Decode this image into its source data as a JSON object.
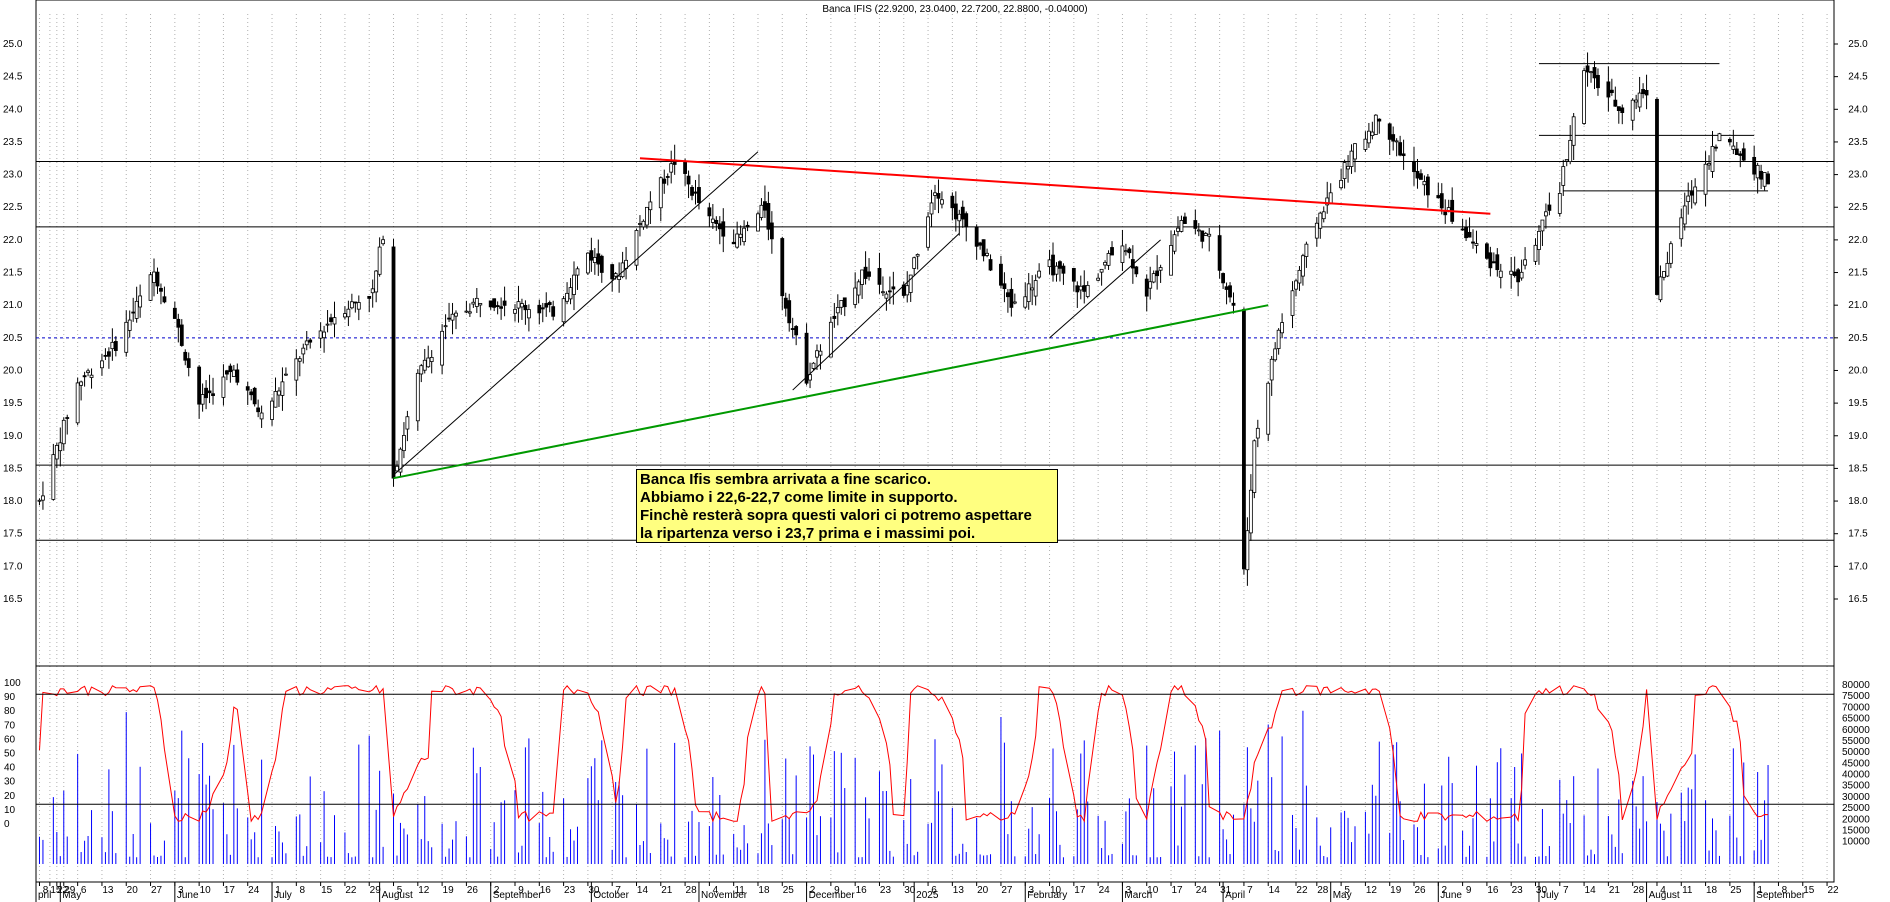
{
  "title": "Banca IFIS (22.9200, 23.0400, 22.7200, 22.8800, -0.04000)",
  "annotation": [
    "Banca Ifis sembra arrivata a fine scarico.",
    "Abbiamo i 22,6-22,7 come limite in supporto.",
    "Finchè resterà sopra questi valori ci potremo aspettare",
    "la ripartenza verso  i 23,7 prima e i massimi poi."
  ],
  "chart_data": [
    {
      "type": "candlestick",
      "title": "Banca IFIS (22.9200, 23.0400, 22.7200, 22.8800, -0.04000)",
      "ylim": [
        16.0,
        25.3
      ],
      "y_ticks": [
        16.5,
        17.0,
        17.5,
        18.0,
        18.5,
        19.0,
        19.5,
        20.0,
        20.5,
        21.0,
        21.5,
        22.0,
        22.5,
        23.0,
        23.5,
        24.0,
        24.5,
        25.0
      ],
      "horizontal_levels": [
        23.2,
        22.2,
        18.55,
        17.4
      ],
      "dashed_level": 20.5,
      "range_levels": [
        {
          "value": 24.7,
          "from": "2025-07-01",
          "to": "2025-08-22"
        },
        {
          "value": 23.6,
          "from": "2025-07-01",
          "to": "2025-09-01"
        },
        {
          "value": 22.75,
          "from": "2025-07-08",
          "to": "2025-09-05"
        }
      ],
      "trendlines": [
        {
          "color": "#ff0000",
          "points": [
            [
              "2024-10-15",
              23.25
            ],
            [
              "2025-06-17",
              22.4
            ]
          ]
        },
        {
          "color": "#009900",
          "points": [
            [
              "2024-08-05",
              18.35
            ],
            [
              "2025-04-14",
              21.0
            ]
          ]
        },
        {
          "color": "#000000",
          "points": [
            [
              "2024-08-05",
              18.4
            ],
            [
              "2024-11-18",
              23.35
            ]
          ]
        },
        {
          "color": "#000000",
          "points": [
            [
              "2024-11-28",
              19.7
            ],
            [
              "2025-01-15",
              22.1
            ]
          ]
        },
        {
          "color": "#000000",
          "points": [
            [
              "2025-02-10",
              20.5
            ],
            [
              "2025-03-14",
              22.0
            ]
          ]
        }
      ],
      "price_path": [
        [
          "2024-04-25",
          18.0
        ],
        [
          "2024-05-06",
          19.8
        ],
        [
          "2024-05-17",
          20.4
        ],
        [
          "2024-05-28",
          21.5
        ],
        [
          "2024-06-03",
          20.8
        ],
        [
          "2024-06-10",
          19.5
        ],
        [
          "2024-06-20",
          20.0
        ],
        [
          "2024-06-28",
          19.3
        ],
        [
          "2024-07-10",
          20.3
        ],
        [
          "2024-07-20",
          20.9
        ],
        [
          "2024-07-30",
          21.2
        ],
        [
          "2024-08-02",
          22.1
        ],
        [
          "2024-08-05",
          18.4
        ],
        [
          "2024-08-12",
          19.9
        ],
        [
          "2024-08-20",
          20.7
        ],
        [
          "2024-08-30",
          21.1
        ],
        [
          "2024-09-10",
          21.0
        ],
        [
          "2024-09-20",
          20.9
        ],
        [
          "2024-09-30",
          21.8
        ],
        [
          "2024-10-08",
          21.4
        ],
        [
          "2024-10-18",
          22.6
        ],
        [
          "2024-10-25",
          23.2
        ],
        [
          "2024-11-04",
          22.3
        ],
        [
          "2024-11-12",
          22.0
        ],
        [
          "2024-11-20",
          22.5
        ],
        [
          "2024-11-25",
          21.2
        ],
        [
          "2024-12-02",
          19.9
        ],
        [
          "2024-12-10",
          20.8
        ],
        [
          "2024-12-18",
          21.5
        ],
        [
          "2024-12-30",
          21.1
        ],
        [
          "2025-01-08",
          22.8
        ],
        [
          "2025-01-20",
          22.0
        ],
        [
          "2025-01-30",
          21.0
        ],
        [
          "2025-02-10",
          21.6
        ],
        [
          "2025-02-20",
          21.2
        ],
        [
          "2025-03-03",
          22.0
        ],
        [
          "2025-03-10",
          21.2
        ],
        [
          "2025-03-20",
          22.3
        ],
        [
          "2025-03-28",
          22.0
        ],
        [
          "2025-04-04",
          21.0
        ],
        [
          "2025-04-07",
          16.9
        ],
        [
          "2025-04-10",
          18.9
        ],
        [
          "2025-04-17",
          20.6
        ],
        [
          "2025-04-28",
          22.3
        ],
        [
          "2025-05-08",
          23.3
        ],
        [
          "2025-05-16",
          23.9
        ],
        [
          "2025-05-26",
          23.0
        ],
        [
          "2025-06-05",
          22.4
        ],
        [
          "2025-06-16",
          21.7
        ],
        [
          "2025-06-25",
          21.4
        ],
        [
          "2025-07-07",
          22.8
        ],
        [
          "2025-07-14",
          24.6
        ],
        [
          "2025-07-25",
          24.0
        ],
        [
          "2025-08-01",
          24.3
        ],
        [
          "2025-08-04",
          21.2
        ],
        [
          "2025-08-12",
          22.5
        ],
        [
          "2025-08-22",
          23.6
        ],
        [
          "2025-09-01",
          23.1
        ],
        [
          "2025-09-05",
          22.88
        ]
      ]
    },
    {
      "type": "line",
      "name": "oscillator",
      "ylim": [
        0,
        100
      ],
      "y_ticks": [
        0,
        10,
        20,
        30,
        40,
        50,
        60,
        70,
        80,
        90,
        100
      ],
      "levels": [
        92,
        14
      ],
      "color": "#ff0000"
    },
    {
      "type": "bar",
      "name": "volume",
      "color": "#0000ff",
      "ylim": [
        0,
        80000
      ],
      "y_ticks": [
        10000,
        15000,
        20000,
        25000,
        30000,
        35000,
        40000,
        45000,
        50000,
        55000,
        60000,
        65000,
        70000,
        75000,
        80000
      ]
    }
  ],
  "x_axis": {
    "months": [
      {
        "label": "pril",
        "date": "2024-04-24"
      },
      {
        "label": "May",
        "date": "2024-05-01"
      },
      {
        "label": "June",
        "date": "2024-06-03"
      },
      {
        "label": "July",
        "date": "2024-07-01"
      },
      {
        "label": "August",
        "date": "2024-08-01"
      },
      {
        "label": "September",
        "date": "2024-09-02"
      },
      {
        "label": "October",
        "date": "2024-10-01"
      },
      {
        "label": "November",
        "date": "2024-11-01"
      },
      {
        "label": "December",
        "date": "2024-12-02"
      },
      {
        "label": "2025",
        "date": "2025-01-02"
      },
      {
        "label": "February",
        "date": "2025-02-03"
      },
      {
        "label": "March",
        "date": "2025-03-03"
      },
      {
        "label": "April",
        "date": "2025-04-01"
      },
      {
        "label": "May",
        "date": "2025-05-02"
      },
      {
        "label": "June",
        "date": "2025-06-02"
      },
      {
        "label": "July",
        "date": "2025-07-01"
      },
      {
        "label": "August",
        "date": "2025-08-01"
      },
      {
        "label": "September",
        "date": "2025-09-01"
      }
    ],
    "days": [
      {
        "label": "8",
        "date": "2024-04-25"
      },
      {
        "label": "15",
        "date": "2024-04-28"
      },
      {
        "label": "22",
        "date": "2024-04-30"
      },
      {
        "label": "29",
        "date": "2024-05-02"
      },
      {
        "label": "6",
        "date": "2024-05-06"
      },
      {
        "label": "13",
        "date": "2024-05-13"
      },
      {
        "label": "20",
        "date": "2024-05-20"
      },
      {
        "label": "27",
        "date": "2024-05-27"
      },
      {
        "label": "3",
        "date": "2024-06-03"
      },
      {
        "label": "10",
        "date": "2024-06-10"
      },
      {
        "label": "17",
        "date": "2024-06-17"
      },
      {
        "label": "24",
        "date": "2024-06-24"
      },
      {
        "label": "1",
        "date": "2024-07-01"
      },
      {
        "label": "8",
        "date": "2024-07-08"
      },
      {
        "label": "15",
        "date": "2024-07-15"
      },
      {
        "label": "22",
        "date": "2024-07-22"
      },
      {
        "label": "29",
        "date": "2024-07-29"
      },
      {
        "label": "5",
        "date": "2024-08-05"
      },
      {
        "label": "12",
        "date": "2024-08-12"
      },
      {
        "label": "19",
        "date": "2024-08-19"
      },
      {
        "label": "26",
        "date": "2024-08-26"
      },
      {
        "label": "2",
        "date": "2024-09-02"
      },
      {
        "label": "9",
        "date": "2024-09-09"
      },
      {
        "label": "16",
        "date": "2024-09-16"
      },
      {
        "label": "23",
        "date": "2024-09-23"
      },
      {
        "label": "30",
        "date": "2024-09-30"
      },
      {
        "label": "7",
        "date": "2024-10-07"
      },
      {
        "label": "14",
        "date": "2024-10-14"
      },
      {
        "label": "21",
        "date": "2024-10-21"
      },
      {
        "label": "28",
        "date": "2024-10-28"
      },
      {
        "label": "4",
        "date": "2024-11-04"
      },
      {
        "label": "11",
        "date": "2024-11-11"
      },
      {
        "label": "18",
        "date": "2024-11-18"
      },
      {
        "label": "25",
        "date": "2024-11-25"
      },
      {
        "label": "2",
        "date": "2024-12-02"
      },
      {
        "label": "9",
        "date": "2024-12-09"
      },
      {
        "label": "16",
        "date": "2024-12-16"
      },
      {
        "label": "23",
        "date": "2024-12-23"
      },
      {
        "label": "30",
        "date": "2024-12-30"
      },
      {
        "label": "6",
        "date": "2025-01-06"
      },
      {
        "label": "13",
        "date": "2025-01-13"
      },
      {
        "label": "20",
        "date": "2025-01-20"
      },
      {
        "label": "27",
        "date": "2025-01-27"
      },
      {
        "label": "3",
        "date": "2025-02-03"
      },
      {
        "label": "10",
        "date": "2025-02-10"
      },
      {
        "label": "17",
        "date": "2025-02-17"
      },
      {
        "label": "24",
        "date": "2025-02-24"
      },
      {
        "label": "3",
        "date": "2025-03-03"
      },
      {
        "label": "10",
        "date": "2025-03-10"
      },
      {
        "label": "17",
        "date": "2025-03-17"
      },
      {
        "label": "24",
        "date": "2025-03-24"
      },
      {
        "label": "31",
        "date": "2025-03-31"
      },
      {
        "label": "7",
        "date": "2025-04-07"
      },
      {
        "label": "14",
        "date": "2025-04-14"
      },
      {
        "label": "22",
        "date": "2025-04-22"
      },
      {
        "label": "28",
        "date": "2025-04-28"
      },
      {
        "label": "5",
        "date": "2025-05-05"
      },
      {
        "label": "12",
        "date": "2025-05-12"
      },
      {
        "label": "19",
        "date": "2025-05-19"
      },
      {
        "label": "26",
        "date": "2025-05-26"
      },
      {
        "label": "2",
        "date": "2025-06-02"
      },
      {
        "label": "9",
        "date": "2025-06-09"
      },
      {
        "label": "16",
        "date": "2025-06-16"
      },
      {
        "label": "23",
        "date": "2025-06-23"
      },
      {
        "label": "30",
        "date": "2025-06-30"
      },
      {
        "label": "7",
        "date": "2025-07-07"
      },
      {
        "label": "14",
        "date": "2025-07-14"
      },
      {
        "label": "21",
        "date": "2025-07-21"
      },
      {
        "label": "28",
        "date": "2025-07-28"
      },
      {
        "label": "4",
        "date": "2025-08-04"
      },
      {
        "label": "11",
        "date": "2025-08-11"
      },
      {
        "label": "18",
        "date": "2025-08-18"
      },
      {
        "label": "25",
        "date": "2025-08-25"
      },
      {
        "label": "1",
        "date": "2025-09-01"
      },
      {
        "label": "8",
        "date": "2025-09-08"
      },
      {
        "label": "15",
        "date": "2025-09-15"
      },
      {
        "label": "22",
        "date": "2025-09-22"
      }
    ]
  },
  "colors": {
    "background": "#ffffff",
    "grid": "#b0b0b0",
    "dashed_level": "#0000cc",
    "trend_red": "#ff0000",
    "trend_green": "#009900",
    "oscillator": "#ff0000",
    "volume": "#0000ff",
    "note_bg": "#ffff80"
  }
}
